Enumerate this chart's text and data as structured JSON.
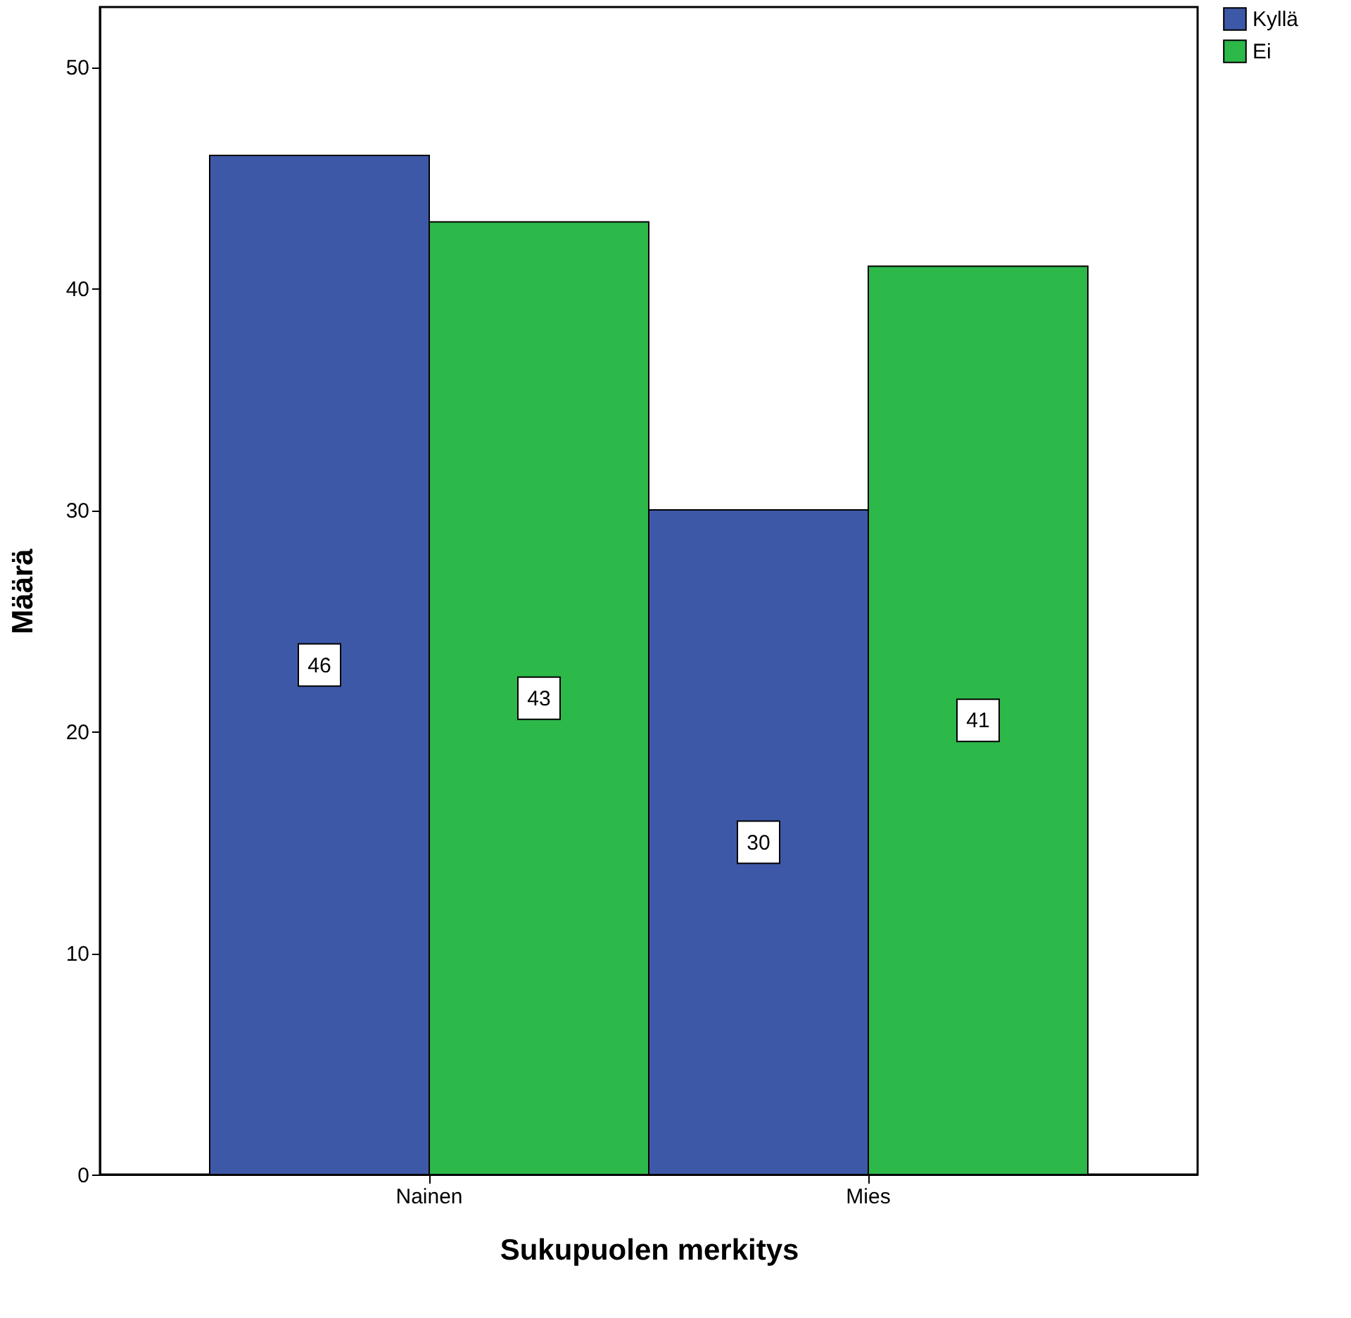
{
  "chart_data": {
    "type": "bar",
    "xlabel": "Sukupuolen merkitys",
    "ylabel": "Määrä",
    "categories": [
      "Nainen",
      "Mies"
    ],
    "series": [
      {
        "name": "Kyllä",
        "color": "#3e58a8",
        "values": [
          46,
          30
        ]
      },
      {
        "name": "Ei",
        "color": "#2db84a",
        "values": [
          43,
          41
        ]
      }
    ],
    "ylim": [
      0,
      52.7
    ],
    "yticks": [
      0,
      10,
      20,
      30,
      40,
      50
    ],
    "grid": false,
    "legend": "top right",
    "data_labels": true
  }
}
